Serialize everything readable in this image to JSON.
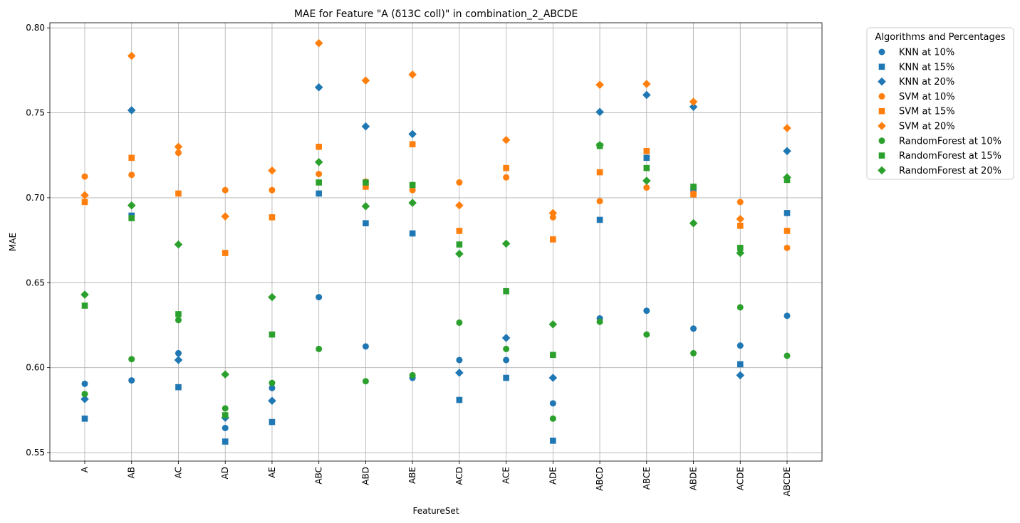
{
  "chart_data": {
    "type": "scatter",
    "title": "MAE for Feature \"A (δ13C coll)\" in combination_2_ABCDE",
    "xlabel": "FeatureSet",
    "ylabel": "MAE",
    "ylim": [
      0.545,
      0.803
    ],
    "yticks": [
      "0.55",
      "0.60",
      "0.65",
      "0.70",
      "0.75",
      "0.80"
    ],
    "grid": true,
    "categories": [
      "A",
      "AB",
      "AC",
      "AD",
      "AE",
      "ABC",
      "ABD",
      "ABE",
      "ACD",
      "ACE",
      "ADE",
      "ABCD",
      "ABCE",
      "ABDE",
      "ACDE",
      "ABCDE"
    ],
    "legend": {
      "title": "Algorithms and Percentages",
      "placement": "outside-top-right"
    },
    "series": [
      {
        "name": "KNN at 10%",
        "color": "#1f77b4",
        "marker": "circle",
        "values": [
          0.5905,
          0.5925,
          0.6085,
          0.5645,
          0.588,
          0.6415,
          0.6125,
          0.594,
          0.6045,
          0.6045,
          0.579,
          0.629,
          0.6335,
          0.623,
          0.613,
          0.6305
        ]
      },
      {
        "name": "KNN at 15%",
        "color": "#1f77b4",
        "marker": "square",
        "values": [
          0.57,
          0.6895,
          0.5885,
          0.5565,
          0.568,
          0.7025,
          0.685,
          0.679,
          0.581,
          0.594,
          0.557,
          0.687,
          0.7235,
          0.705,
          0.602,
          0.691
        ]
      },
      {
        "name": "KNN at 20%",
        "color": "#1f77b4",
        "marker": "diamond",
        "values": [
          0.5815,
          0.7515,
          0.6045,
          0.5705,
          0.5805,
          0.765,
          0.742,
          0.7375,
          0.597,
          0.6175,
          0.594,
          0.7505,
          0.7605,
          0.7535,
          0.5955,
          0.7275
        ]
      },
      {
        "name": "SVM at 10%",
        "color": "#ff7f0e",
        "marker": "circle",
        "values": [
          0.7125,
          0.7135,
          0.7265,
          0.7045,
          0.7045,
          0.714,
          0.7095,
          0.7045,
          0.709,
          0.712,
          0.6885,
          0.698,
          0.706,
          0.7025,
          0.6975,
          0.6705
        ]
      },
      {
        "name": "SVM at 15%",
        "color": "#ff7f0e",
        "marker": "square",
        "values": [
          0.6975,
          0.7235,
          0.7025,
          0.6675,
          0.6885,
          0.73,
          0.7065,
          0.7315,
          0.6805,
          0.7175,
          0.6755,
          0.715,
          0.7275,
          0.702,
          0.6835,
          0.6805
        ]
      },
      {
        "name": "SVM at 20%",
        "color": "#ff7f0e",
        "marker": "diamond",
        "values": [
          0.7015,
          0.7835,
          0.73,
          0.689,
          0.716,
          0.791,
          0.769,
          0.7725,
          0.6955,
          0.734,
          0.691,
          0.7665,
          0.767,
          0.7565,
          0.6875,
          0.741
        ]
      },
      {
        "name": "RandomForest at 10%",
        "color": "#2ca02c",
        "marker": "circle",
        "values": [
          0.5845,
          0.605,
          0.628,
          0.576,
          0.591,
          0.611,
          0.592,
          0.5955,
          0.6265,
          0.611,
          0.57,
          0.627,
          0.6195,
          0.6085,
          0.6355,
          0.607
        ]
      },
      {
        "name": "RandomForest at 15%",
        "color": "#2ca02c",
        "marker": "square",
        "values": [
          0.6365,
          0.688,
          0.6315,
          0.572,
          0.6195,
          0.709,
          0.709,
          0.7075,
          0.6725,
          0.645,
          0.6075,
          0.7305,
          0.7175,
          0.7065,
          0.6705,
          0.7105
        ]
      },
      {
        "name": "RandomForest at 20%",
        "color": "#2ca02c",
        "marker": "diamond",
        "values": [
          0.643,
          0.6955,
          0.6725,
          0.596,
          0.6415,
          0.721,
          0.695,
          0.697,
          0.667,
          0.673,
          0.6255,
          0.731,
          0.71,
          0.685,
          0.6675,
          0.712
        ]
      }
    ]
  }
}
